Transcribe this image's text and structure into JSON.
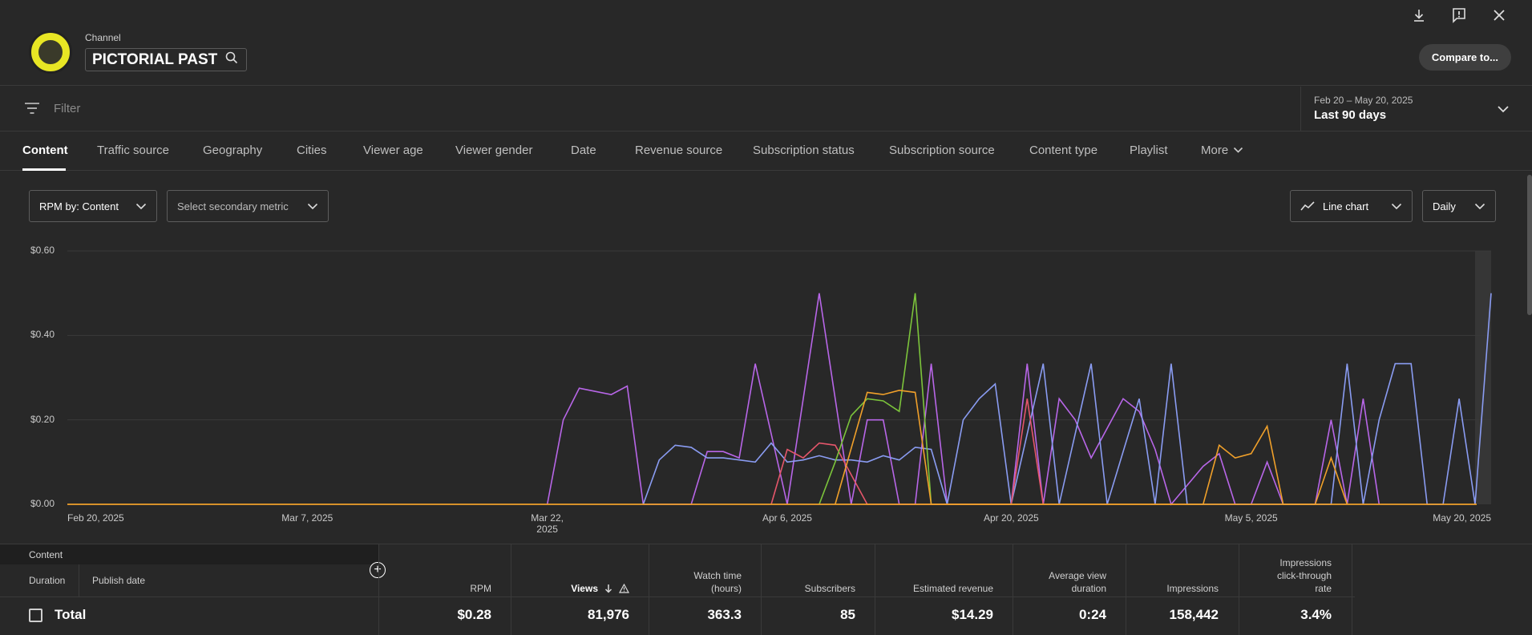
{
  "header": {
    "channel_label": "Channel",
    "channel_name": "PICTORIAL PAST",
    "compare_label": "Compare to..."
  },
  "filter": {
    "placeholder": "Filter",
    "date_range": "Feb 20 – May 20, 2025",
    "date_label": "Last 90 days"
  },
  "tabs": [
    "Content",
    "Traffic source",
    "Geography",
    "Cities",
    "Viewer age",
    "Viewer gender",
    "Date",
    "Revenue source",
    "Subscription status",
    "Subscription source",
    "Content type",
    "Playlist",
    "More"
  ],
  "controls": {
    "primary_metric": "RPM by: Content",
    "secondary_metric": "Select secondary metric",
    "chart_type": "Line chart",
    "interval": "Daily"
  },
  "chart_data": {
    "type": "line",
    "ylim": [
      0,
      0.6
    ],
    "yticks": [
      "$0.60",
      "$0.40",
      "$0.20",
      "$0.00"
    ],
    "xticks": [
      "Feb 20, 2025",
      "Mar 7, 2025",
      "Mar 22, 2025",
      "Apr 6, 2025",
      "Apr 20, 2025",
      "May 5, 2025",
      "May 20, 2025"
    ],
    "x_range": [
      "Feb 20, 2025",
      "May 20, 2025"
    ],
    "grid": true,
    "series": [
      {
        "color": "#b866e8",
        "points": [
          [
            "Mar 22, 2025",
            0
          ],
          [
            "Mar 23, 2025",
            0.2
          ],
          [
            "Mar 24, 2025",
            0.275
          ],
          [
            "Mar 26, 2025",
            0.26
          ],
          [
            "Mar 27, 2025",
            0.28
          ],
          [
            "Mar 28, 2025",
            0
          ],
          [
            "Mar 31, 2025",
            0
          ],
          [
            "Apr 1, 2025",
            0.125
          ],
          [
            "Apr 2, 2025",
            0.125
          ],
          [
            "Apr 3, 2025",
            0.11
          ],
          [
            "Apr 4, 2025",
            0.333
          ],
          [
            "Apr 6, 2025",
            0
          ],
          [
            "Apr 8, 2025",
            0.5
          ],
          [
            "Apr 10, 2025",
            0
          ],
          [
            "Apr 11, 2025",
            0.2
          ],
          [
            "Apr 12, 2025",
            0.2
          ],
          [
            "Apr 13, 2025",
            0
          ],
          [
            "Apr 14, 2025",
            0
          ],
          [
            "Apr 15, 2025",
            0.333
          ],
          [
            "Apr 16, 2025",
            0
          ],
          [
            "Apr 20, 2025",
            0
          ],
          [
            "Apr 21, 2025",
            0.333
          ],
          [
            "Apr 22, 2025",
            0
          ],
          [
            "Apr 23, 2025",
            0.25
          ],
          [
            "Apr 24, 2025",
            0.2
          ],
          [
            "Apr 25, 2025",
            0.11
          ],
          [
            "Apr 27, 2025",
            0.25
          ],
          [
            "Apr 28, 2025",
            0.22
          ],
          [
            "Apr 29, 2025",
            0.13
          ],
          [
            "Apr 30, 2025",
            0
          ],
          [
            "May 2, 2025",
            0.09
          ],
          [
            "May 3, 2025",
            0.12
          ],
          [
            "May 4, 2025",
            0
          ],
          [
            "May 5, 2025",
            0
          ],
          [
            "May 6, 2025",
            0.1
          ],
          [
            "May 7, 2025",
            0
          ],
          [
            "May 9, 2025",
            0
          ],
          [
            "May 10, 2025",
            0.2
          ],
          [
            "May 11, 2025",
            0
          ],
          [
            "May 12, 2025",
            0.25
          ],
          [
            "May 13, 2025",
            0
          ]
        ]
      },
      {
        "color": "#8a9cf2",
        "points": [
          [
            "Mar 28, 2025",
            0
          ],
          [
            "Mar 29, 2025",
            0.105
          ],
          [
            "Mar 30, 2025",
            0.14
          ],
          [
            "Mar 31, 2025",
            0.135
          ],
          [
            "Apr 1, 2025",
            0.11
          ],
          [
            "Apr 2, 2025",
            0.11
          ],
          [
            "Apr 4, 2025",
            0.1
          ],
          [
            "Apr 5, 2025",
            0.145
          ],
          [
            "Apr 6, 2025",
            0.1
          ],
          [
            "Apr 7, 2025",
            0.105
          ],
          [
            "Apr 8, 2025",
            0.115
          ],
          [
            "Apr 9, 2025",
            0.105
          ],
          [
            "Apr 10, 2025",
            0.105
          ],
          [
            "Apr 11, 2025",
            0.1
          ],
          [
            "Apr 12, 2025",
            0.115
          ],
          [
            "Apr 13, 2025",
            0.105
          ],
          [
            "Apr 14, 2025",
            0.135
          ],
          [
            "Apr 15, 2025",
            0.13
          ],
          [
            "Apr 16, 2025",
            0
          ],
          [
            "Apr 17, 2025",
            0.2
          ],
          [
            "Apr 18, 2025",
            0.25
          ],
          [
            "Apr 19, 2025",
            0.285
          ],
          [
            "Apr 20, 2025",
            0
          ],
          [
            "Apr 22, 2025",
            0.333
          ],
          [
            "Apr 23, 2025",
            0
          ],
          [
            "Apr 25, 2025",
            0.333
          ],
          [
            "Apr 26, 2025",
            0
          ],
          [
            "Apr 28, 2025",
            0.25
          ],
          [
            "Apr 29, 2025",
            0
          ],
          [
            "Apr 30, 2025",
            0.333
          ],
          [
            "May 1, 2025",
            0
          ],
          [
            "May 10, 2025",
            0
          ],
          [
            "May 11, 2025",
            0.333
          ],
          [
            "May 12, 2025",
            0
          ],
          [
            "May 13, 2025",
            0.2
          ],
          [
            "May 14, 2025",
            0.333
          ],
          [
            "May 15, 2025",
            0.333
          ],
          [
            "May 16, 2025",
            0
          ],
          [
            "May 17, 2025",
            0
          ],
          [
            "May 18, 2025",
            0.25
          ],
          [
            "May 19, 2025",
            0
          ],
          [
            "May 19, 2025",
            0
          ],
          [
            "May 20, 2025",
            0.5
          ]
        ]
      },
      {
        "color": "#e5566b",
        "points": [
          [
            "Apr 5, 2025",
            0
          ],
          [
            "Apr 6, 2025",
            0.13
          ],
          [
            "Apr 7, 2025",
            0.11
          ],
          [
            "Apr 8, 2025",
            0.145
          ],
          [
            "Apr 9, 2025",
            0.14
          ],
          [
            "Apr 10, 2025",
            0.07
          ],
          [
            "Apr 11, 2025",
            0
          ],
          [
            "Apr 20, 2025",
            0
          ],
          [
            "Apr 21, 2025",
            0.25
          ],
          [
            "Apr 22, 2025",
            0
          ]
        ]
      },
      {
        "color": "#7cc43b",
        "points": [
          [
            "Apr 8, 2025",
            0
          ],
          [
            "Apr 9, 2025",
            0.1
          ],
          [
            "Apr 10, 2025",
            0.21
          ],
          [
            "Apr 11, 2025",
            0.25
          ],
          [
            "Apr 12, 2025",
            0.245
          ],
          [
            "Apr 13, 2025",
            0.22
          ],
          [
            "Apr 14, 2025",
            0.5
          ],
          [
            "Apr 15, 2025",
            0
          ]
        ]
      },
      {
        "color": "#f0a02a",
        "points": [
          [
            "Apr 9, 2025",
            0
          ],
          [
            "Apr 11, 2025",
            0.265
          ],
          [
            "Apr 12, 2025",
            0.26
          ],
          [
            "Apr 13, 2025",
            0.27
          ],
          [
            "Apr 14, 2025",
            0.265
          ],
          [
            "Apr 15, 2025",
            0
          ],
          [
            "May 2, 2025",
            0
          ],
          [
            "May 3, 2025",
            0.14
          ],
          [
            "May 4, 2025",
            0.11
          ],
          [
            "May 5, 2025",
            0.12
          ],
          [
            "May 6, 2025",
            0.185
          ],
          [
            "May 7, 2025",
            0
          ],
          [
            "May 9, 2025",
            0
          ],
          [
            "May 10, 2025",
            0.11
          ],
          [
            "May 11, 2025",
            0
          ]
        ]
      }
    ]
  },
  "table": {
    "content_header": "Content",
    "duration_header": "Duration",
    "publish_header": "Publish date",
    "columns": [
      {
        "l1": "",
        "l2": "RPM"
      },
      {
        "l1": "",
        "l2": "Views"
      },
      {
        "l1": "Watch time",
        "l2": "(hours)"
      },
      {
        "l1": "",
        "l2": "Subscribers"
      },
      {
        "l1": "",
        "l2": "Estimated revenue"
      },
      {
        "l1": "Average view",
        "l2": "duration"
      },
      {
        "l1": "",
        "l2": "Impressions"
      },
      {
        "l0": "Impressions",
        "l1": "click-through",
        "l2": "rate"
      }
    ],
    "total_label": "Total",
    "totals": [
      "$0.28",
      "81,976",
      "363.3",
      "85",
      "$14.29",
      "0:24",
      "158,442",
      "3.4%"
    ]
  },
  "colors": {
    "bg": "#282828",
    "grid": "#3a3a3a",
    "baseline": "#f0a02a"
  }
}
